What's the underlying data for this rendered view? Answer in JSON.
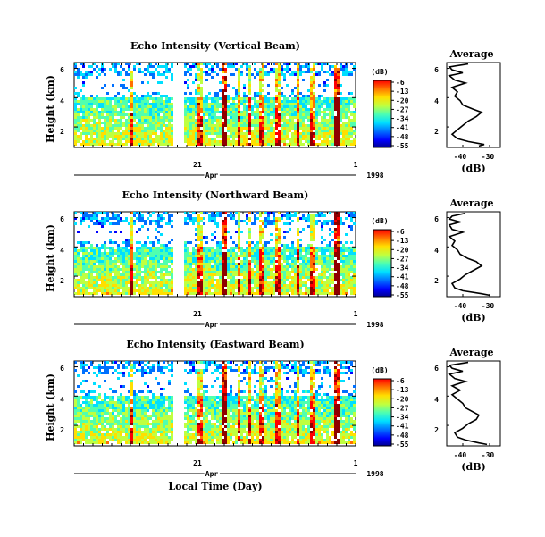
{
  "colors": {
    "jet": [
      "#00008f",
      "#0000ff",
      "#0070ff",
      "#00dfff",
      "#50ffaf",
      "#bfff40",
      "#ffdf00",
      "#ff7000",
      "#ff0000",
      "#8f0000"
    ]
  },
  "chart_data": [
    {
      "type": "heatmap",
      "title": "Echo Intensity (Vertical Beam)",
      "ylabel": "Height (km)",
      "y_ticks": [
        "2",
        "4",
        "6"
      ],
      "x_ticks": [
        "21",
        "1"
      ],
      "month_label": "Apr",
      "year_label": "1998",
      "colorbar": {
        "unit": "(dB)",
        "ticks": [
          "-6",
          "-13",
          "-20",
          "-27",
          "-34",
          "-41",
          "-48",
          "-55"
        ],
        "range": [
          -55,
          -6
        ]
      },
      "profile": {
        "title": "Average",
        "xlabel": "(dB)",
        "x_ticks": [
          "-40",
          "-30"
        ],
        "y_ticks": [
          "2",
          "4",
          "6"
        ],
        "xlim": [
          -46,
          -26
        ],
        "ylim": [
          0.6,
          6.4
        ],
        "points": [
          [
            -34,
            0.7
          ],
          [
            -32,
            0.8
          ],
          [
            -38,
            1.0
          ],
          [
            -42,
            1.2
          ],
          [
            -44,
            1.5
          ],
          [
            -42,
            1.8
          ],
          [
            -40,
            2.1
          ],
          [
            -38,
            2.4
          ],
          [
            -35,
            2.7
          ],
          [
            -33,
            3.0
          ],
          [
            -36,
            3.2
          ],
          [
            -40,
            3.5
          ],
          [
            -41,
            3.8
          ],
          [
            -43,
            4.1
          ],
          [
            -42,
            4.4
          ],
          [
            -44,
            4.7
          ],
          [
            -39,
            5.0
          ],
          [
            -43,
            5.2
          ],
          [
            -45,
            5.5
          ],
          [
            -40,
            5.7
          ],
          [
            -44,
            5.9
          ],
          [
            -45,
            6.1
          ],
          [
            -38,
            6.3
          ]
        ]
      }
    },
    {
      "type": "heatmap",
      "title": "Echo Intensity (Northward Beam)",
      "ylabel": "Height (km)",
      "y_ticks": [
        "2",
        "4",
        "6"
      ],
      "x_ticks": [
        "21",
        "1"
      ],
      "month_label": "Apr",
      "year_label": "1998",
      "colorbar": {
        "unit": "(dB)",
        "ticks": [
          "-6",
          "-13",
          "-20",
          "-27",
          "-34",
          "-41",
          "-48",
          "-55"
        ],
        "range": [
          -55,
          -6
        ]
      },
      "profile": {
        "title": "Average",
        "xlabel": "(dB)",
        "x_ticks": [
          "-40",
          "-30"
        ],
        "y_ticks": [
          "2",
          "4",
          "6"
        ],
        "xlim": [
          -46,
          -26
        ],
        "ylim": [
          0.6,
          6.4
        ],
        "points": [
          [
            -30,
            0.7
          ],
          [
            -33,
            0.8
          ],
          [
            -40,
            1.0
          ],
          [
            -43,
            1.2
          ],
          [
            -44,
            1.5
          ],
          [
            -41,
            1.8
          ],
          [
            -39,
            2.1
          ],
          [
            -36,
            2.4
          ],
          [
            -33,
            2.7
          ],
          [
            -35,
            3.0
          ],
          [
            -38,
            3.2
          ],
          [
            -41,
            3.5
          ],
          [
            -42,
            3.8
          ],
          [
            -44,
            4.1
          ],
          [
            -43,
            4.4
          ],
          [
            -45,
            4.7
          ],
          [
            -40,
            5.0
          ],
          [
            -44,
            5.2
          ],
          [
            -45,
            5.5
          ],
          [
            -41,
            5.7
          ],
          [
            -45,
            5.9
          ],
          [
            -44,
            6.1
          ],
          [
            -39,
            6.3
          ]
        ]
      }
    },
    {
      "type": "heatmap",
      "title": "Echo Intensity (Eastward Beam)",
      "ylabel": "Height (km)",
      "xlabel": "Local Time (Day)",
      "y_ticks": [
        "2",
        "4",
        "6"
      ],
      "x_ticks": [
        "21",
        "1"
      ],
      "month_label": "Apr",
      "year_label": "1998",
      "colorbar": {
        "unit": "(dB)",
        "ticks": [
          "-6",
          "-13",
          "-20",
          "-27",
          "-34",
          "-41",
          "-48",
          "-55"
        ],
        "range": [
          -55,
          -6
        ]
      },
      "profile": {
        "title": "Average",
        "xlabel": "(dB)",
        "x_ticks": [
          "-40",
          "-30"
        ],
        "y_ticks": [
          "2",
          "4",
          "6"
        ],
        "xlim": [
          -46,
          -26
        ],
        "ylim": [
          0.6,
          6.4
        ],
        "points": [
          [
            -31,
            0.7
          ],
          [
            -34,
            0.8
          ],
          [
            -39,
            1.0
          ],
          [
            -42,
            1.2
          ],
          [
            -43,
            1.5
          ],
          [
            -40,
            1.8
          ],
          [
            -38,
            2.1
          ],
          [
            -35,
            2.4
          ],
          [
            -34,
            2.7
          ],
          [
            -37,
            3.0
          ],
          [
            -39,
            3.2
          ],
          [
            -40,
            3.5
          ],
          [
            -42,
            3.8
          ],
          [
            -44,
            4.1
          ],
          [
            -41,
            4.4
          ],
          [
            -44,
            4.7
          ],
          [
            -39,
            5.0
          ],
          [
            -43,
            5.2
          ],
          [
            -45,
            5.5
          ],
          [
            -40,
            5.7
          ],
          [
            -44,
            5.9
          ],
          [
            -45,
            6.1
          ],
          [
            -38,
            6.3
          ]
        ]
      }
    }
  ]
}
